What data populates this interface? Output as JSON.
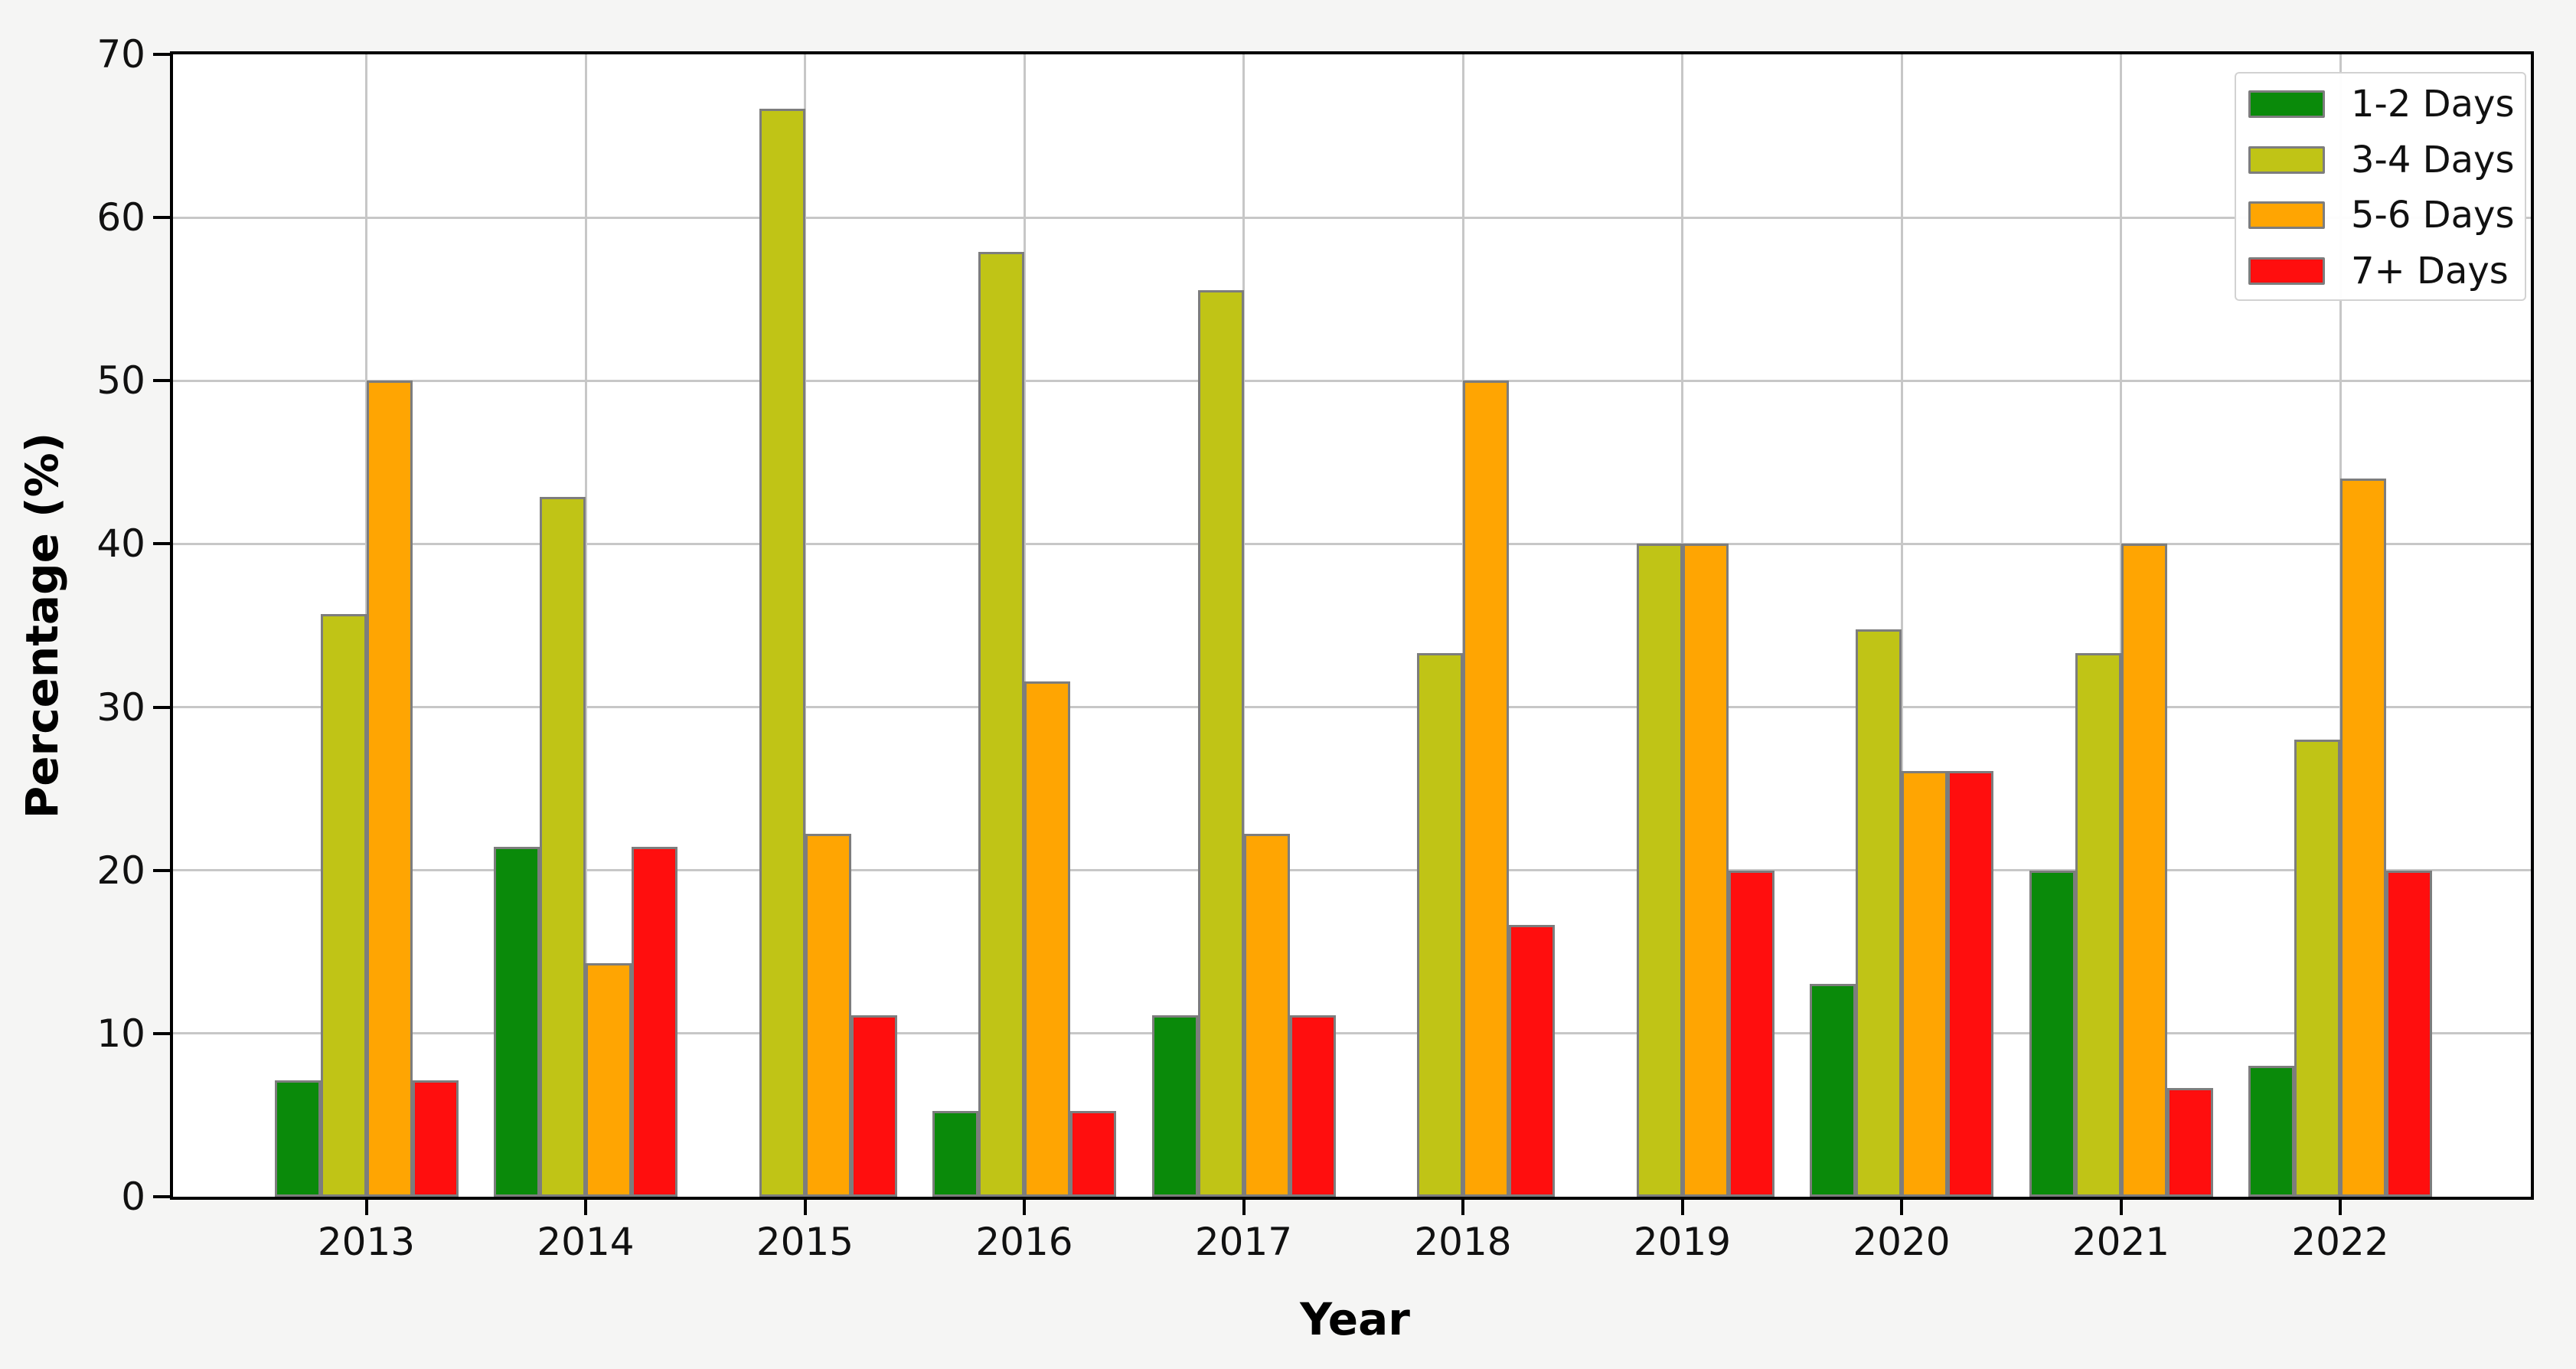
{
  "chart_data": {
    "type": "bar",
    "title": "",
    "xlabel": "Year",
    "ylabel": "Percentage (%)",
    "categories": [
      "2013",
      "2014",
      "2015",
      "2016",
      "2017",
      "2018",
      "2019",
      "2020",
      "2021",
      "2022"
    ],
    "series": [
      {
        "name": "1-2 Days",
        "color": "#0a8a0a",
        "values": [
          7.14,
          21.43,
          0,
          5.26,
          11.11,
          0,
          0,
          13.04,
          20.0,
          8.0
        ]
      },
      {
        "name": "3-4 Days",
        "color": "#c0c416",
        "values": [
          35.71,
          42.86,
          66.67,
          57.89,
          55.56,
          33.33,
          40.0,
          34.78,
          33.33,
          28.0
        ]
      },
      {
        "name": "5-6 Days",
        "color": "#ffa502",
        "values": [
          50.0,
          14.29,
          22.22,
          31.58,
          22.22,
          50.0,
          40.0,
          26.09,
          40.0,
          44.0
        ]
      },
      {
        "name": "7+ Days",
        "color": "#ff0e0e",
        "values": [
          7.14,
          21.43,
          11.11,
          5.26,
          11.11,
          16.67,
          20.0,
          26.09,
          6.67,
          20.0
        ]
      }
    ],
    "ylim": [
      0,
      70
    ],
    "yticks": [
      0,
      10,
      20,
      30,
      40,
      50,
      60,
      70
    ],
    "grid": true,
    "legend_position": "upper right",
    "bar_edge_color": "#7d7d7d",
    "grid_color": "#c7c7c7",
    "plot_background": "#ffffff",
    "figure_background": "#f5f5f4"
  }
}
